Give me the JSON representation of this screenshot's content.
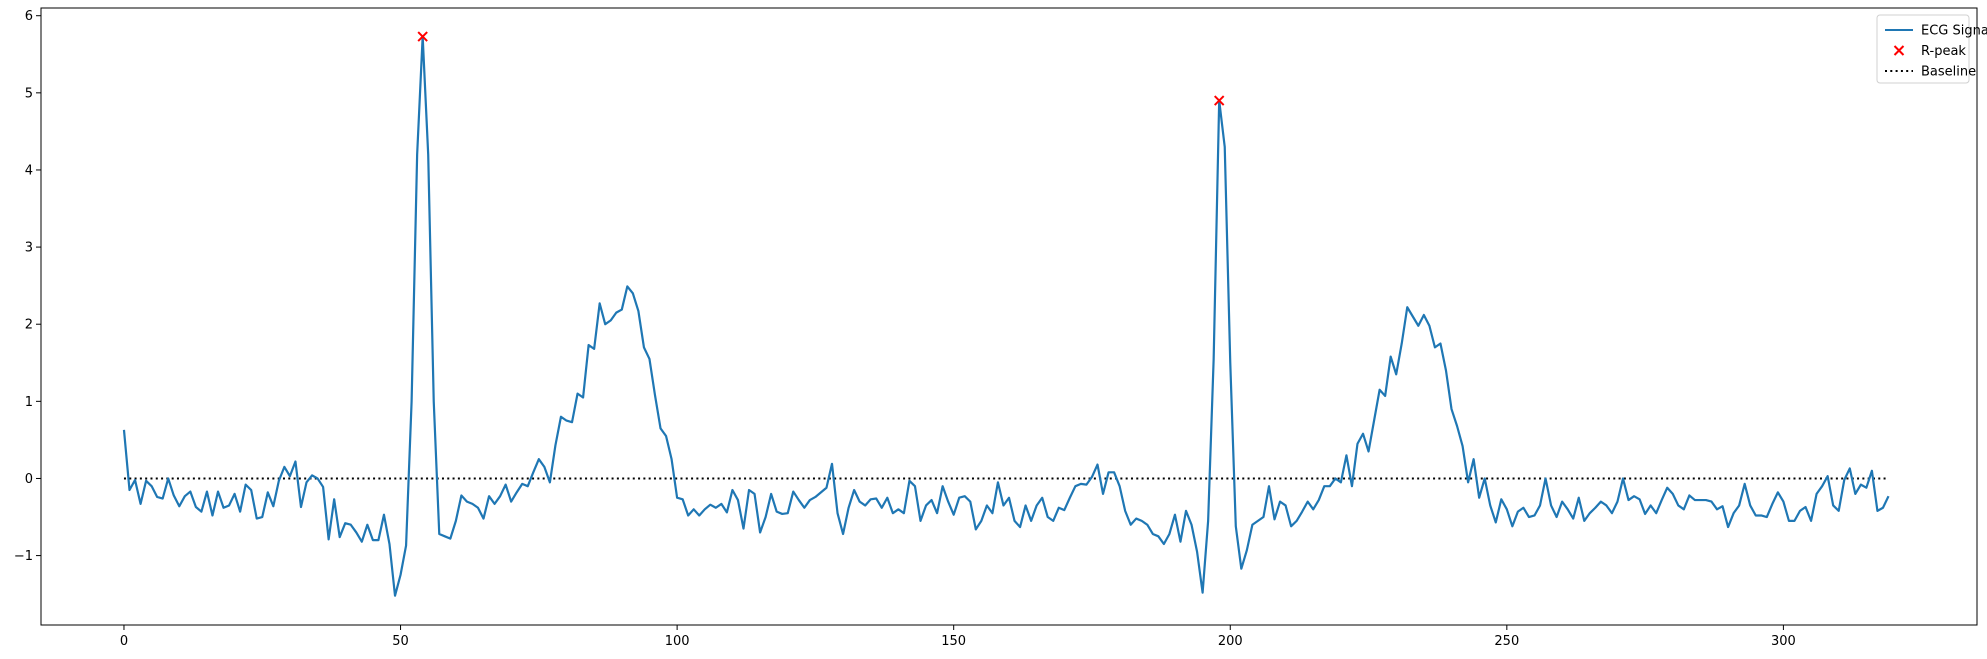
{
  "chart_data": {
    "type": "line",
    "title": "",
    "xlabel": "",
    "ylabel": "",
    "xlim": [
      -15,
      335
    ],
    "ylim": [
      -1.9,
      6.1
    ],
    "grid": false,
    "legend_position": "top-right",
    "x_ticks": [
      0,
      50,
      100,
      150,
      200,
      250,
      300
    ],
    "y_ticks": [
      -1,
      0,
      1,
      2,
      3,
      4,
      5,
      6
    ],
    "series": [
      {
        "name": "ECG Signal",
        "kind": "line",
        "color": "#1f77b4",
        "x_start": 0,
        "x_step": 1,
        "values": [
          0.63,
          -0.15,
          -0.02,
          -0.33,
          -0.03,
          -0.1,
          -0.24,
          -0.26,
          0.0,
          -0.22,
          -0.36,
          -0.23,
          -0.17,
          -0.37,
          -0.43,
          -0.17,
          -0.48,
          -0.17,
          -0.38,
          -0.35,
          -0.2,
          -0.43,
          -0.08,
          -0.15,
          -0.52,
          -0.5,
          -0.18,
          -0.36,
          -0.03,
          0.15,
          0.03,
          0.22,
          -0.37,
          -0.05,
          0.04,
          0.0,
          -0.11,
          -0.79,
          -0.27,
          -0.76,
          -0.58,
          -0.6,
          -0.7,
          -0.82,
          -0.6,
          -0.8,
          -0.8,
          -0.47,
          -0.85,
          -1.52,
          -1.25,
          -0.87,
          1.0,
          4.2,
          5.73,
          4.2,
          1.0,
          -0.72,
          -0.75,
          -0.78,
          -0.55,
          -0.22,
          -0.3,
          -0.33,
          -0.38,
          -0.52,
          -0.23,
          -0.33,
          -0.23,
          -0.08,
          -0.3,
          -0.18,
          -0.07,
          -0.1,
          0.08,
          0.25,
          0.15,
          -0.05,
          0.43,
          0.8,
          0.75,
          0.73,
          1.1,
          1.05,
          1.73,
          1.68,
          2.27,
          2.0,
          2.05,
          2.15,
          2.19,
          2.49,
          2.4,
          2.17,
          1.7,
          1.55,
          1.08,
          0.65,
          0.55,
          0.25,
          -0.25,
          -0.27,
          -0.48,
          -0.4,
          -0.48,
          -0.4,
          -0.34,
          -0.38,
          -0.33,
          -0.44,
          -0.15,
          -0.28,
          -0.65,
          -0.15,
          -0.2,
          -0.7,
          -0.5,
          -0.2,
          -0.43,
          -0.46,
          -0.45,
          -0.17,
          -0.28,
          -0.38,
          -0.28,
          -0.24,
          -0.18,
          -0.12,
          0.19,
          -0.45,
          -0.72,
          -0.38,
          -0.15,
          -0.3,
          -0.35,
          -0.27,
          -0.26,
          -0.38,
          -0.25,
          -0.45,
          -0.4,
          -0.45,
          -0.03,
          -0.1,
          -0.55,
          -0.35,
          -0.28,
          -0.45,
          -0.1,
          -0.3,
          -0.47,
          -0.25,
          -0.23,
          -0.3,
          -0.66,
          -0.55,
          -0.35,
          -0.45,
          -0.05,
          -0.35,
          -0.25,
          -0.55,
          -0.63,
          -0.35,
          -0.55,
          -0.35,
          -0.25,
          -0.5,
          -0.55,
          -0.38,
          -0.41,
          -0.25,
          -0.1,
          -0.07,
          -0.08,
          0.02,
          0.18,
          -0.2,
          0.08,
          0.08,
          -0.1,
          -0.42,
          -0.6,
          -0.52,
          -0.55,
          -0.6,
          -0.72,
          -0.75,
          -0.85,
          -0.72,
          -0.47,
          -0.82,
          -0.42,
          -0.6,
          -0.95,
          -1.48,
          -0.55,
          1.55,
          4.9,
          4.3,
          1.5,
          -0.62,
          -1.17,
          -0.93,
          -0.6,
          -0.55,
          -0.5,
          -0.1,
          -0.53,
          -0.3,
          -0.35,
          -0.62,
          -0.55,
          -0.43,
          -0.3,
          -0.4,
          -0.28,
          -0.1,
          -0.1,
          0.0,
          -0.05,
          0.3,
          -0.1,
          0.45,
          0.58,
          0.35,
          0.75,
          1.15,
          1.07,
          1.58,
          1.35,
          1.75,
          2.22,
          2.1,
          1.98,
          2.12,
          1.98,
          1.7,
          1.75,
          1.4,
          0.9,
          0.68,
          0.42,
          -0.05,
          0.25,
          -0.25,
          0.0,
          -0.35,
          -0.57,
          -0.27,
          -0.4,
          -0.62,
          -0.43,
          -0.38,
          -0.5,
          -0.48,
          -0.35,
          0.0,
          -0.35,
          -0.5,
          -0.3,
          -0.4,
          -0.52,
          -0.25,
          -0.55,
          -0.45,
          -0.38,
          -0.3,
          -0.35,
          -0.45,
          -0.3,
          0.0,
          -0.28,
          -0.23,
          -0.27,
          -0.46,
          -0.35,
          -0.45,
          -0.28,
          -0.12,
          -0.2,
          -0.35,
          -0.4,
          -0.22,
          -0.28,
          -0.28,
          -0.28,
          -0.3,
          -0.4,
          -0.36,
          -0.63,
          -0.45,
          -0.35,
          -0.07,
          -0.35,
          -0.48,
          -0.48,
          -0.5,
          -0.33,
          -0.18,
          -0.3,
          -0.55,
          -0.55,
          -0.42,
          -0.37,
          -0.55,
          -0.2,
          -0.1,
          0.03,
          -0.35,
          -0.42,
          -0.02,
          0.13,
          -0.2,
          -0.08,
          -0.12,
          0.1,
          -0.42,
          -0.38,
          -0.23
        ]
      },
      {
        "name": "R-peak",
        "kind": "scatter",
        "marker": "x",
        "color": "#ff0000",
        "points": [
          [
            54,
            5.73
          ],
          [
            198,
            4.9
          ]
        ]
      },
      {
        "name": "Baseline",
        "kind": "hline",
        "style": "dotted",
        "color": "#000000",
        "y": 0,
        "x_range": [
          0,
          319
        ]
      }
    ]
  }
}
